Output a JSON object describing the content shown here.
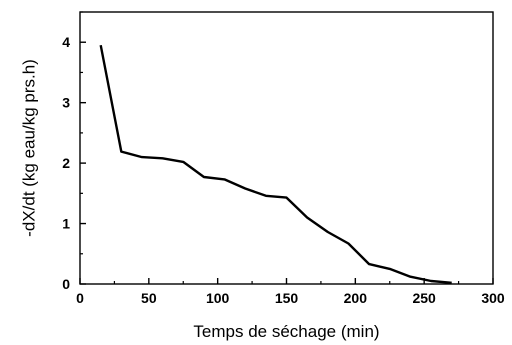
{
  "chart_data": {
    "type": "line",
    "xlabel": "Temps de séchage (min)",
    "ylabel": "-dX/dt (kg eau/kg prs.h)",
    "xlim": [
      0,
      300
    ],
    "ylim": [
      0,
      4.5
    ],
    "xticks": [
      0,
      50,
      100,
      150,
      200,
      250,
      300
    ],
    "yticks": [
      0,
      1,
      2,
      3,
      4
    ],
    "xtick_labels": [
      "0",
      "50",
      "100",
      "150",
      "200",
      "250",
      "300"
    ],
    "ytick_labels": [
      "0",
      "1",
      "2",
      "3",
      "4"
    ],
    "grid": false,
    "series": [
      {
        "color": "#000000",
        "x": [
          15,
          30,
          45,
          60,
          75,
          90,
          105,
          120,
          135,
          150,
          165,
          180,
          195,
          210,
          225,
          240,
          255,
          270
        ],
        "y": [
          3.95,
          2.19,
          2.1,
          2.08,
          2.02,
          1.77,
          1.73,
          1.58,
          1.46,
          1.43,
          1.1,
          0.86,
          0.67,
          0.33,
          0.25,
          0.12,
          0.05,
          0.02
        ]
      }
    ]
  }
}
